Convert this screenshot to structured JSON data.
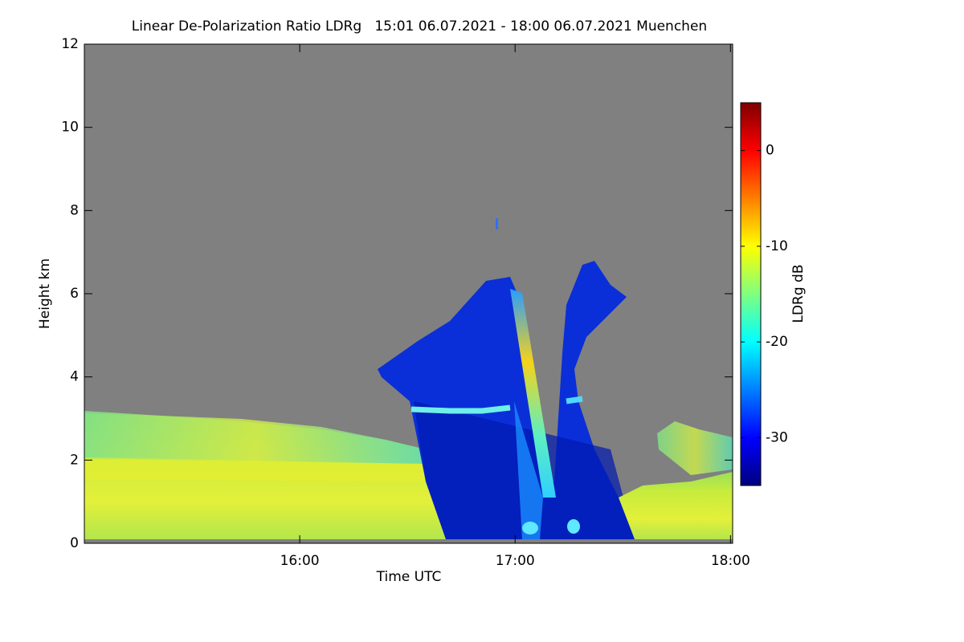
{
  "chart_data": {
    "type": "heatmap",
    "title": "Linear De-Polarization Ratio LDRg   15:01 06.07.2021 - 18:00 06.07.2021 Muenchen",
    "xlabel": "Time UTC",
    "ylabel": "Height km",
    "xlim": [
      15,
      18.01
    ],
    "xticks": [
      {
        "value": 16,
        "label": "16:00"
      },
      {
        "value": 17,
        "label": "17:00"
      },
      {
        "value": 18,
        "label": "18:00"
      }
    ],
    "ylim": [
      0,
      12
    ],
    "yticks": [
      0,
      2,
      4,
      6,
      8,
      10,
      12
    ],
    "background": "#808080",
    "colorbar": {
      "label": "LDRg dB",
      "colormap": "jet",
      "clim": [
        -35,
        5
      ],
      "ticks": [
        0,
        -10,
        -20,
        -30
      ]
    }
  }
}
